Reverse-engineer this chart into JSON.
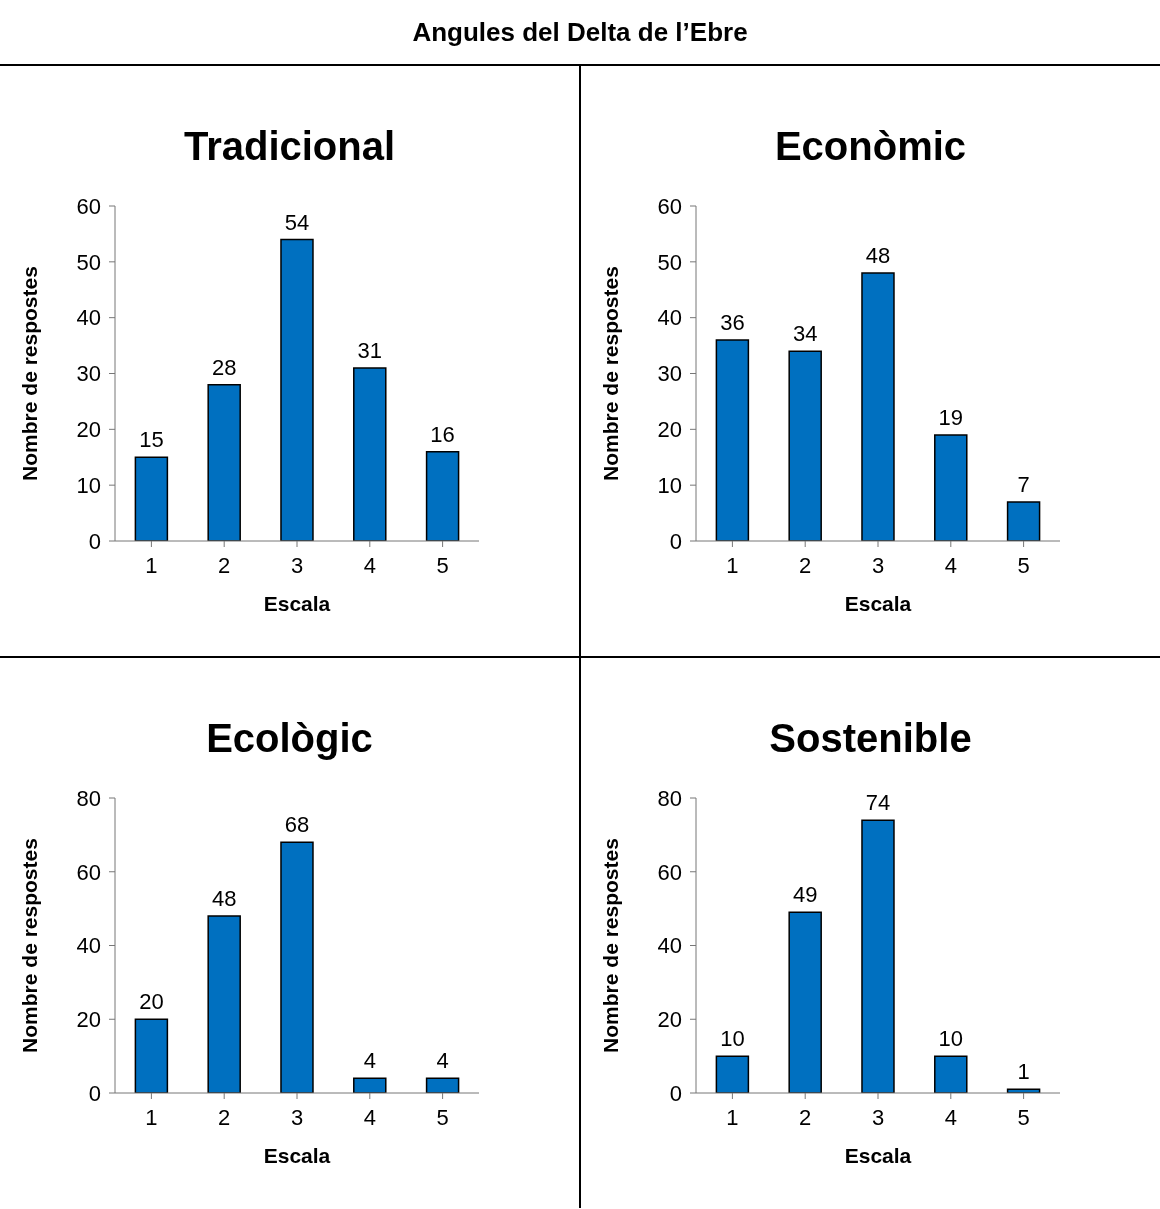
{
  "chart_data": [
    {
      "type": "bar",
      "annotations": [
        "Angules del Delta de l’Ebre"
      ],
      "title": "Tradicional",
      "xlabel": "Escala",
      "ylabel": "Nombre de respostes",
      "categories": [
        "1",
        "2",
        "3",
        "4",
        "5"
      ],
      "values": [
        15,
        28,
        54,
        31,
        16
      ],
      "color": "#0070c0",
      "ylim": [
        0,
        60
      ],
      "yticks": [
        0,
        10,
        20,
        30,
        40,
        50,
        60
      ],
      "data_labels": true
    },
    {
      "type": "bar",
      "title": "Econòmic",
      "xlabel": "Escala",
      "ylabel": "Nombre de respostes",
      "categories": [
        "1",
        "2",
        "3",
        "4",
        "5"
      ],
      "values": [
        36,
        34,
        48,
        19,
        7
      ],
      "color": "#0070c0",
      "ylim": [
        0,
        60
      ],
      "yticks": [
        0,
        10,
        20,
        30,
        40,
        50,
        60
      ],
      "data_labels": true
    },
    {
      "type": "bar",
      "title": "Ecològic",
      "xlabel": "Escala",
      "ylabel": "Nombre de respostes",
      "categories": [
        "1",
        "2",
        "3",
        "4",
        "5"
      ],
      "values": [
        20,
        48,
        68,
        4,
        4
      ],
      "color": "#0070c0",
      "ylim": [
        0,
        80
      ],
      "yticks": [
        0,
        20,
        40,
        60,
        80
      ],
      "data_labels": true
    },
    {
      "type": "bar",
      "title": "Sostenible",
      "xlabel": "Escala",
      "ylabel": "Nombre de respostes",
      "categories": [
        "1",
        "2",
        "3",
        "4",
        "5"
      ],
      "values": [
        10,
        49,
        74,
        10,
        1
      ],
      "color": "#0070c0",
      "ylim": [
        0,
        80
      ],
      "yticks": [
        0,
        20,
        40,
        60,
        80
      ],
      "data_labels": true
    }
  ]
}
